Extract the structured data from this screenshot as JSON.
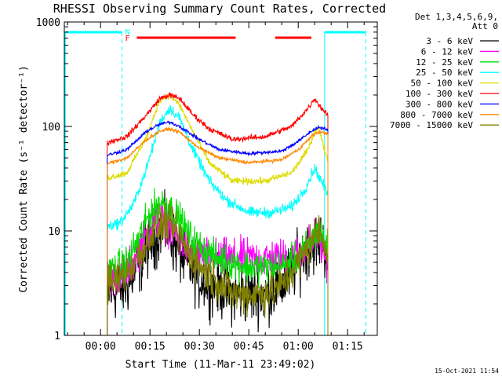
{
  "chart_data": {
    "type": "line",
    "title": "RHESSI Observing Summary Count Rates, Corrected",
    "xlabel": "Start Time (11-Mar-11 23:49:02)",
    "ylabel": "Corrected Count Rate (s⁻¹ detector⁻¹)",
    "ylim": [
      1,
      1000
    ],
    "yscale": "log",
    "xlim": [
      -11,
      84
    ],
    "x_unit": "minutes from 00:00",
    "x_ticks": [
      {
        "v": 0,
        "label": "00:00"
      },
      {
        "v": 15,
        "label": "00:15"
      },
      {
        "v": 30,
        "label": "00:30"
      },
      {
        "v": 45,
        "label": "00:45"
      },
      {
        "v": 60,
        "label": "01:00"
      },
      {
        "v": 75,
        "label": "01:15"
      }
    ],
    "y_ticks": [
      {
        "v": 1,
        "label": "1"
      },
      {
        "v": 10,
        "label": "10"
      },
      {
        "v": 100,
        "label": "100"
      },
      {
        "v": 1000,
        "label": "1000"
      }
    ],
    "legend": {
      "header_line1": "Det 1,3,4,5,6,9,",
      "header_line2": "Att 0",
      "position": "right"
    },
    "annotations": {
      "night_label": "N",
      "flare_label": "F",
      "night_intervals": [
        [
          -10.5,
          6.5
        ],
        [
          68,
          80.5
        ]
      ],
      "night_boundaries": [
        6.5,
        68,
        80.5
      ],
      "flare_intervals": [
        [
          11,
          41
        ],
        [
          53,
          64
        ]
      ],
      "timestamp": "15-Oct-2021 11:54"
    },
    "data_range": [
      2,
      69
    ],
    "series": [
      {
        "name": "3 - 6 keV",
        "color": "#000000",
        "noise": 0.55,
        "points": [
          [
            2,
            2.5
          ],
          [
            8,
            3
          ],
          [
            12,
            5
          ],
          [
            15,
            7.5
          ],
          [
            18,
            10
          ],
          [
            20,
            10.5
          ],
          [
            23,
            7
          ],
          [
            26,
            5
          ],
          [
            30,
            3.5
          ],
          [
            35,
            3
          ],
          [
            40,
            2.5
          ],
          [
            50,
            2.5
          ],
          [
            55,
            3
          ],
          [
            60,
            5
          ],
          [
            63,
            7
          ],
          [
            66,
            8
          ],
          [
            68,
            7
          ],
          [
            69,
            6
          ]
        ]
      },
      {
        "name": "6 - 12 keV",
        "color": "#ff00ff",
        "noise": 0.35,
        "points": [
          [
            2,
            3.5
          ],
          [
            8,
            4
          ],
          [
            12,
            7
          ],
          [
            16,
            12
          ],
          [
            18,
            13
          ],
          [
            20,
            12
          ],
          [
            24,
            8
          ],
          [
            28,
            6
          ],
          [
            35,
            5.5
          ],
          [
            45,
            5.5
          ],
          [
            55,
            5.5
          ],
          [
            60,
            6
          ],
          [
            64,
            8
          ],
          [
            66,
            9
          ],
          [
            68,
            6
          ],
          [
            69,
            5
          ]
        ]
      },
      {
        "name": "12 - 25 keV",
        "color": "#00dd00",
        "noise": 0.3,
        "points": [
          [
            2,
            4
          ],
          [
            8,
            5
          ],
          [
            12,
            9
          ],
          [
            15,
            15
          ],
          [
            18,
            19
          ],
          [
            20,
            18
          ],
          [
            24,
            13
          ],
          [
            28,
            8
          ],
          [
            35,
            5.5
          ],
          [
            45,
            4.5
          ],
          [
            55,
            4.5
          ],
          [
            60,
            5.5
          ],
          [
            64,
            8
          ],
          [
            66,
            10
          ],
          [
            68,
            8
          ],
          [
            69,
            7
          ]
        ]
      },
      {
        "name": "25 - 50 keV",
        "color": "#00ffff",
        "noise": 0.1,
        "points": [
          [
            2,
            11
          ],
          [
            6,
            12
          ],
          [
            10,
            18
          ],
          [
            14,
            40
          ],
          [
            18,
            110
          ],
          [
            21,
            150
          ],
          [
            24,
            120
          ],
          [
            28,
            60
          ],
          [
            33,
            30
          ],
          [
            38,
            20
          ],
          [
            45,
            15
          ],
          [
            52,
            15
          ],
          [
            58,
            17
          ],
          [
            62,
            25
          ],
          [
            65,
            40
          ],
          [
            67,
            30
          ],
          [
            69,
            22
          ]
        ]
      },
      {
        "name": "50 - 100 keV",
        "color": "#dddd00",
        "noise": 0.06,
        "points": [
          [
            2,
            32
          ],
          [
            8,
            36
          ],
          [
            14,
            80
          ],
          [
            18,
            180
          ],
          [
            21,
            200
          ],
          [
            24,
            160
          ],
          [
            28,
            90
          ],
          [
            33,
            45
          ],
          [
            40,
            30
          ],
          [
            50,
            30
          ],
          [
            58,
            36
          ],
          [
            63,
            60
          ],
          [
            65,
            90
          ],
          [
            66,
            100
          ],
          [
            68,
            60
          ],
          [
            69,
            48
          ]
        ]
      },
      {
        "name": "100 - 300 keV",
        "color": "#ff0000",
        "noise": 0.05,
        "points": [
          [
            2,
            70
          ],
          [
            8,
            80
          ],
          [
            14,
            130
          ],
          [
            18,
            185
          ],
          [
            21,
            200
          ],
          [
            24,
            185
          ],
          [
            28,
            130
          ],
          [
            33,
            95
          ],
          [
            40,
            75
          ],
          [
            50,
            80
          ],
          [
            58,
            100
          ],
          [
            63,
            150
          ],
          [
            65,
            185
          ],
          [
            67,
            150
          ],
          [
            69,
            130
          ]
        ]
      },
      {
        "name": "300 - 800 keV",
        "color": "#0000ff",
        "noise": 0.03,
        "points": [
          [
            2,
            53
          ],
          [
            8,
            60
          ],
          [
            14,
            90
          ],
          [
            18,
            105
          ],
          [
            21,
            110
          ],
          [
            24,
            100
          ],
          [
            30,
            75
          ],
          [
            36,
            60
          ],
          [
            45,
            55
          ],
          [
            55,
            58
          ],
          [
            60,
            72
          ],
          [
            64,
            90
          ],
          [
            66,
            98
          ],
          [
            68,
            95
          ],
          [
            69,
            92
          ]
        ]
      },
      {
        "name": "800 - 7000 keV",
        "color": "#ff8800",
        "noise": 0.03,
        "points": [
          [
            2,
            44
          ],
          [
            8,
            50
          ],
          [
            14,
            75
          ],
          [
            18,
            90
          ],
          [
            21,
            95
          ],
          [
            24,
            88
          ],
          [
            30,
            62
          ],
          [
            36,
            50
          ],
          [
            45,
            45
          ],
          [
            55,
            48
          ],
          [
            60,
            60
          ],
          [
            64,
            80
          ],
          [
            66,
            88
          ],
          [
            68,
            87
          ],
          [
            69,
            85
          ]
        ]
      },
      {
        "name": "7000 - 15000 keV",
        "color": "#808000",
        "noise": 0.35,
        "points": [
          [
            2,
            3
          ],
          [
            8,
            4
          ],
          [
            12,
            6
          ],
          [
            15,
            9
          ],
          [
            18,
            11
          ],
          [
            20,
            12
          ],
          [
            23,
            10
          ],
          [
            27,
            6
          ],
          [
            32,
            4
          ],
          [
            40,
            2.5
          ],
          [
            50,
            2.5
          ],
          [
            55,
            3
          ],
          [
            60,
            5
          ],
          [
            64,
            8
          ],
          [
            66,
            10
          ],
          [
            68,
            8
          ],
          [
            69,
            6
          ]
        ]
      }
    ]
  }
}
